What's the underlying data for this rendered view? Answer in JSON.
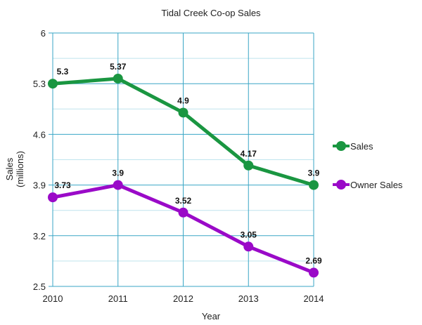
{
  "chart_data": {
    "type": "line",
    "title": "Tidal Creek Co-op Sales",
    "xlabel": "Year",
    "ylabel": "Sales\n(millions)",
    "categories": [
      "2010",
      "2011",
      "2012",
      "2013",
      "2014"
    ],
    "y_ticks": [
      "2.5",
      "3.2",
      "3.9",
      "4.6",
      "5.3",
      "6"
    ],
    "ylim": [
      2.5,
      6
    ],
    "grid": true,
    "legend_position": "right",
    "series": [
      {
        "name": "Sales",
        "color": "#1a9641",
        "values": [
          5.3,
          5.37,
          4.9,
          4.17,
          3.9
        ],
        "labels": [
          "5.3",
          "5.37",
          "4.9",
          "4.17",
          "3.9"
        ]
      },
      {
        "name": "Owner Sales",
        "color": "#9a0ac8",
        "values": [
          3.73,
          3.9,
          3.52,
          3.05,
          2.69
        ],
        "labels": [
          "3.73",
          "3.9",
          "3.52",
          "3.05",
          "2.69"
        ]
      }
    ]
  }
}
